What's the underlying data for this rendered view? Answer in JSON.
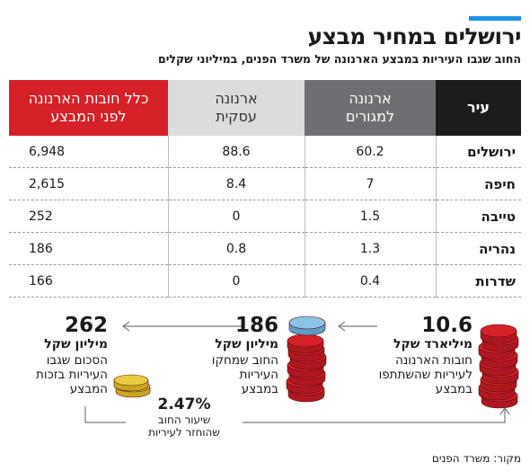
{
  "title": "ירושלים במחיר מבצע",
  "subtitle": "החוב שגבו העיריות במבצע הארנונה של משרד הפנים, במיליוני שקלים",
  "colors": {
    "accent": "#1e90e6",
    "red": "#d62027",
    "dark": "#1c1c1c",
    "gray": "#6e6f72",
    "light_gray": "#dcdcdc",
    "coin_blue": "#8cc4e8",
    "coin_gold": "#e8cc40"
  },
  "chart_data": {
    "type": "table",
    "columns": [
      {
        "key": "city",
        "label": "עיר"
      },
      {
        "key": "residential",
        "label_line1": "ארנונה",
        "label_line2": "למגורים"
      },
      {
        "key": "business",
        "label_line1": "ארנונה",
        "label_line2": "עסקית"
      },
      {
        "key": "total",
        "label_line1": "כלל חובות הארנונה",
        "label_line2": "לפני המבצע"
      }
    ],
    "rows": [
      {
        "city": "ירושלים",
        "residential": "60.2",
        "business": "88.6",
        "total": "6,948"
      },
      {
        "city": "חיפה",
        "residential": "7",
        "business": "8.4",
        "total": "2,615"
      },
      {
        "city": "טייבה",
        "residential": "1.5",
        "business": "0",
        "total": "252"
      },
      {
        "city": "נהריה",
        "residential": "1.3",
        "business": "0.8",
        "total": "186"
      },
      {
        "city": "שדרות",
        "residential": "0.4",
        "business": "0",
        "total": "166"
      }
    ]
  },
  "summary": {
    "total_debt": {
      "value": "10.6",
      "unit": "מיליארד שקל",
      "desc_line1": "חובות הארנונה",
      "desc_line2": "לעיריות שהשתתפו",
      "desc_line3": "במבצע"
    },
    "forgiven": {
      "value": "186",
      "unit": "מיליון שקל",
      "desc_line1": "החוב שמחקו",
      "desc_line2": "העיריות",
      "desc_line3": "במבצע"
    },
    "collected": {
      "value": "262",
      "unit": "מיליון שקל",
      "desc_line1": "הסכום שגבו",
      "desc_line2": "העיריות בזכות",
      "desc_line3": "המבצע"
    },
    "return_rate": {
      "value": "2.47%",
      "label_line1": "שיעור החוב",
      "label_line2": "שהוחזר לעיריות"
    }
  },
  "source": "מקור: משרד הפנים"
}
